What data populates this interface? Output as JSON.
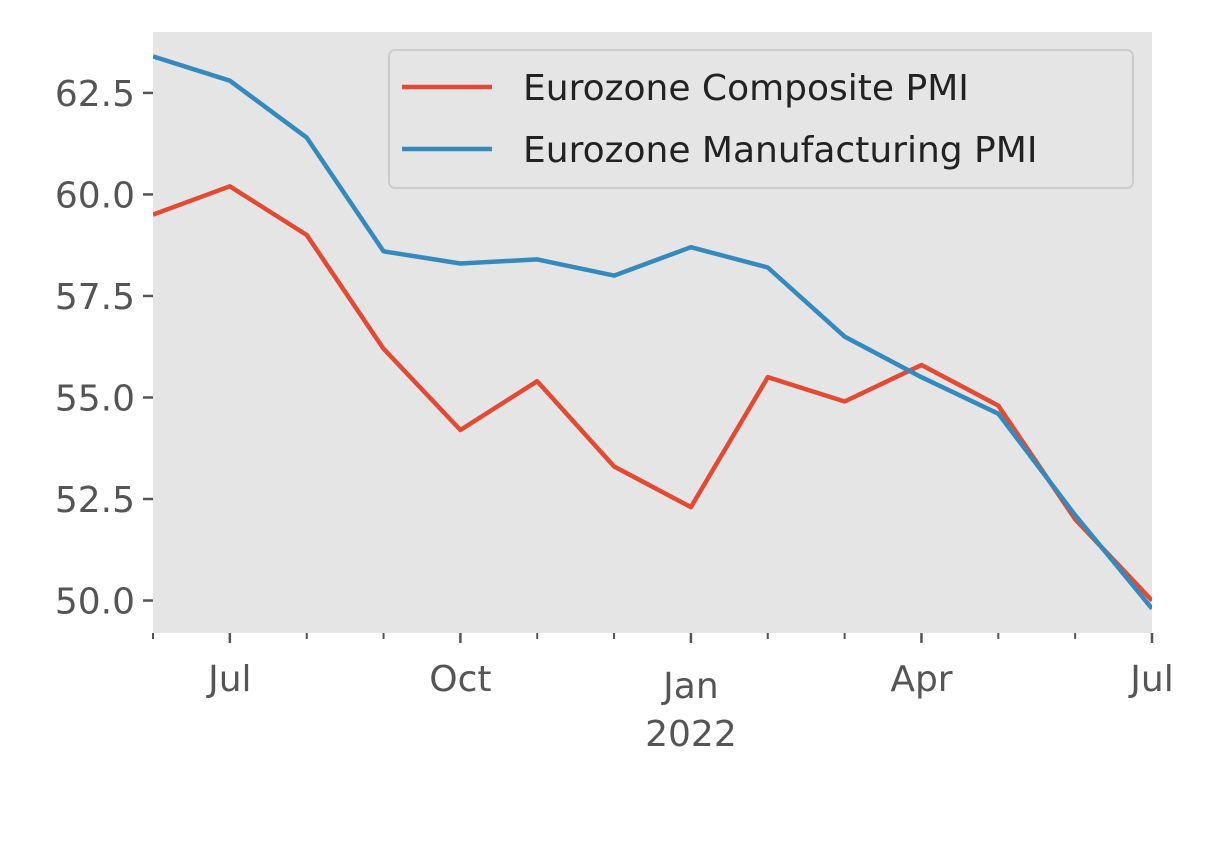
{
  "chart_data": {
    "type": "line",
    "title": "",
    "xlabel": "",
    "ylabel": "",
    "x": [
      "2021-06",
      "2021-07",
      "2021-08",
      "2021-09",
      "2021-10",
      "2021-11",
      "2021-12",
      "2022-01",
      "2022-02",
      "2022-03",
      "2022-04",
      "2022-05",
      "2022-06",
      "2022-07"
    ],
    "x_tick_labels": [
      {
        "x": "2021-07",
        "label": "Jul"
      },
      {
        "x": "2021-10",
        "label": "Oct"
      },
      {
        "x": "2022-01",
        "label": "Jan",
        "sublabel": "2022"
      },
      {
        "x": "2022-04",
        "label": "Apr"
      },
      {
        "x": "2022-07",
        "label": "Jul"
      }
    ],
    "y_ticks": [
      "50.0",
      "52.5",
      "55.0",
      "57.5",
      "60.0",
      "62.5"
    ],
    "ylim": [
      49.2,
      64.0
    ],
    "xlim": [
      "2021-06",
      "2022-07"
    ],
    "grid": false,
    "legend_position": "top-right",
    "series": [
      {
        "name": "Eurozone Composite PMI",
        "color": "#E24A33",
        "values": [
          59.5,
          60.2,
          59.0,
          56.2,
          54.2,
          55.4,
          53.3,
          52.3,
          55.5,
          54.9,
          55.8,
          54.8,
          52.0,
          50.0
        ]
      },
      {
        "name": "Eurozone Manufacturing PMI",
        "color": "#348ABD",
        "values": [
          63.4,
          62.8,
          61.4,
          58.6,
          58.3,
          58.4,
          58.0,
          58.7,
          58.2,
          56.5,
          55.5,
          54.6,
          52.1,
          49.8
        ]
      }
    ],
    "colors": {
      "plot_background": "#E5E5E5",
      "axis_text": "#555555"
    }
  }
}
